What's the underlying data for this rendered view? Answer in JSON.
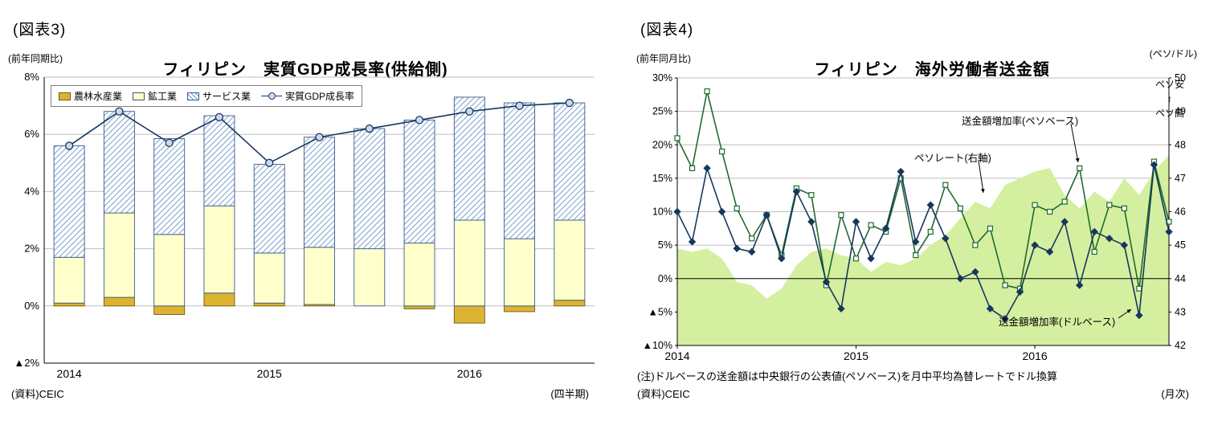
{
  "fig3": {
    "fig_label": "(図表3)",
    "axis_unit": "(前年同期比)",
    "title": "フィリピン　実質GDP成長率(供給側)",
    "source": "(資料)CEIC",
    "frequency": "(四半期)"
  },
  "fig4": {
    "fig_label": "(図表4)",
    "axis_unit_left": "(前年同月比)",
    "axis_unit_right": "(ペソ/ドル)",
    "title": "フィリピン　海外労働者送金額",
    "peso_weak": "ペソ安",
    "arrow_up": "↑",
    "peso_strong": "ペソ高",
    "ann_peso_base": "送金額増加率(ペソベース)",
    "ann_peso_rate": "ペソレート(右軸)",
    "ann_dollar_base": "送金額増加率(ドルベース)",
    "note": "(注)ドルベースの送金額は中央銀行の公表値(ペソベース)を月中平均為替レートでドル換算",
    "source": "(資料)CEIC",
    "frequency": "(月次)"
  },
  "chart_data": [
    {
      "id": "gdp-growth-supply-side",
      "type": "bar",
      "title": "フィリピン　実質GDP成長率(供給側)",
      "ylabel": "(前年同期比)",
      "xlabel": "(四半期)",
      "ylim": [
        -2,
        8
      ],
      "yticks": [
        8,
        6,
        4,
        2,
        0,
        -2
      ],
      "ytick_labels": [
        "8%",
        "6%",
        "4%",
        "2%",
        "0%",
        "▲2%"
      ],
      "grid": true,
      "legend_position": "top",
      "categories": [
        "2014Q1",
        "2014Q2",
        "2014Q3",
        "2014Q4",
        "2015Q1",
        "2015Q2",
        "2015Q3",
        "2015Q4",
        "2016Q1",
        "2016Q2",
        "2016Q3"
      ],
      "x_year_labels": [
        {
          "at": 0,
          "label": "2014"
        },
        {
          "at": 4,
          "label": "2015"
        },
        {
          "at": 8,
          "label": "2016"
        }
      ],
      "series": [
        {
          "name": "農林水産業",
          "type": "bar",
          "color": "#DCB431",
          "border": "#6B5A10",
          "values": [
            0.1,
            0.3,
            -0.3,
            0.45,
            0.1,
            0.05,
            0.0,
            -0.1,
            -0.6,
            -0.2,
            0.2
          ]
        },
        {
          "name": "鉱工業",
          "type": "bar",
          "color": "#FFFFCC",
          "border": "#3A5A8C",
          "values": [
            1.6,
            2.95,
            2.5,
            3.05,
            1.75,
            2.0,
            2.0,
            2.2,
            3.0,
            2.35,
            2.8
          ]
        },
        {
          "name": "サービス業",
          "type": "bar",
          "color": "hatch",
          "border": "#3A5A8C",
          "hatch_color": "#6B96C8",
          "values": [
            3.9,
            3.55,
            3.35,
            3.15,
            3.1,
            3.85,
            4.2,
            4.3,
            4.3,
            4.75,
            4.1
          ]
        },
        {
          "name": "実質GDP成長率",
          "type": "line",
          "color": "#17375E",
          "marker": "circle",
          "marker_fill": "#C9DAF0",
          "values": [
            5.6,
            6.8,
            5.7,
            6.6,
            5.0,
            5.9,
            6.2,
            6.5,
            6.8,
            7.0,
            7.1
          ]
        }
      ]
    },
    {
      "id": "ofw-remittances",
      "type": "line",
      "title": "フィリピン　海外労働者送金額",
      "ylabel_left": "(前年同月比)",
      "ylabel_right": "(ペソ/ドル)",
      "xlabel": "(月次)",
      "x_start": "2014-01",
      "x_months": 34,
      "ylim_left": [
        -10,
        30
      ],
      "yticks_left": [
        30,
        25,
        20,
        15,
        10,
        5,
        0,
        -5,
        -10
      ],
      "ytick_labels_left": [
        "30%",
        "25%",
        "20%",
        "15%",
        "10%",
        "5%",
        "0%",
        "▲5%",
        "▲10%"
      ],
      "ylim_right": [
        42,
        50
      ],
      "yticks_right": [
        50,
        49,
        48,
        47,
        46,
        45,
        44,
        43,
        42
      ],
      "ytick_labels_right": [
        "50",
        "49",
        "48",
        "47",
        "46",
        "45",
        "44",
        "43",
        "42"
      ],
      "x_year_labels": [
        {
          "at": 0,
          "label": "2014"
        },
        {
          "at": 12,
          "label": "2015"
        },
        {
          "at": 24,
          "label": "2016"
        }
      ],
      "series": [
        {
          "name": "ペソレート(右軸)",
          "type": "area",
          "axis": "right",
          "color": "#D5EFA0",
          "values": [
            44.9,
            44.8,
            44.9,
            44.6,
            43.9,
            43.8,
            43.4,
            43.7,
            44.4,
            44.8,
            44.9,
            44.7,
            44.6,
            44.2,
            44.5,
            44.4,
            44.6,
            45.0,
            45.3,
            45.8,
            46.3,
            46.1,
            46.8,
            47.0,
            47.2,
            47.3,
            46.5,
            46.1,
            46.6,
            46.3,
            47.0,
            46.5,
            47.2,
            47.7
          ]
        },
        {
          "name": "送金額増加率(ペソベース)",
          "type": "line",
          "axis": "left",
          "color": "#1F6B2D",
          "marker": "square",
          "marker_fill": "#FFFFFF",
          "values": [
            21,
            16.5,
            28,
            19,
            10.5,
            6,
            9.5,
            3.5,
            13.5,
            12.5,
            -1,
            9.5,
            3,
            8,
            7,
            15,
            3.5,
            7,
            14,
            10.5,
            5,
            7.5,
            -1,
            -1.5,
            11,
            10,
            11.5,
            16.5,
            4,
            11,
            10.5,
            -1.5,
            17.5,
            8.5
          ]
        },
        {
          "name": "送金額増加率(ドルベース)",
          "type": "line",
          "axis": "left",
          "color": "#17375E",
          "marker": "diamond",
          "marker_fill": "#17375E",
          "values": [
            10,
            5.5,
            16.5,
            10,
            4.5,
            4,
            9.5,
            3,
            13,
            8.5,
            -0.5,
            -4.5,
            8.5,
            3,
            7.5,
            16,
            5.5,
            11,
            6,
            0,
            1,
            -4.5,
            -6,
            -2,
            5,
            4,
            8.5,
            -1,
            7,
            6,
            5,
            -5.5,
            17,
            7
          ]
        }
      ]
    }
  ]
}
